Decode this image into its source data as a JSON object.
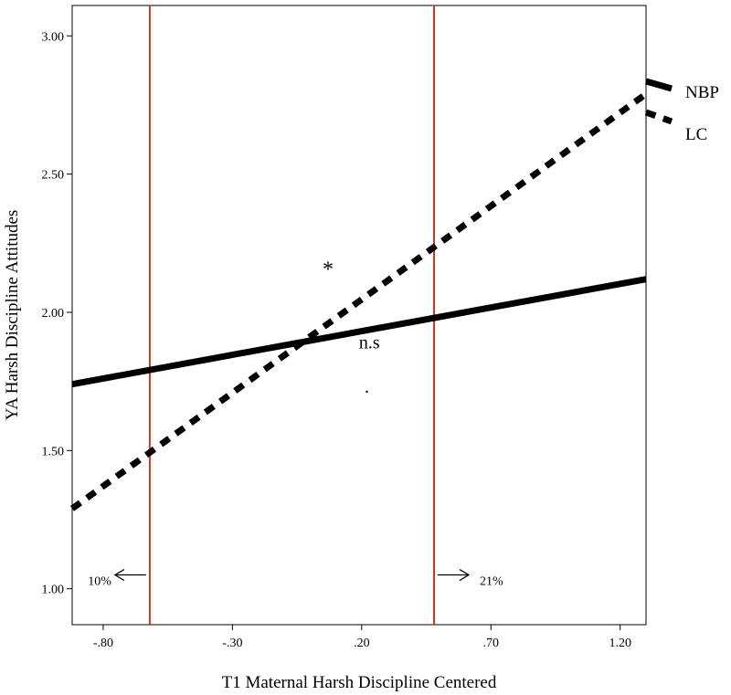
{
  "chart_data": {
    "type": "line",
    "title": "",
    "xlabel": "T1 Maternal Harsh Discipline Centered",
    "ylabel": "YA Harsh Discipline Attitudes",
    "xlim": [
      -0.92,
      1.3
    ],
    "ylim": [
      0.87,
      3.11
    ],
    "x_ticks": [
      -0.8,
      -0.3,
      0.2,
      0.7,
      1.2
    ],
    "x_tick_labels": [
      "-.80",
      "-.30",
      ".20",
      ".70",
      "1.20"
    ],
    "y_ticks": [
      1.0,
      1.5,
      2.0,
      2.5,
      3.0
    ],
    "y_tick_labels": [
      "1.00",
      "1.50",
      "2.00",
      "2.50",
      "3.00"
    ],
    "grid": false,
    "legend_placement": "right",
    "series": [
      {
        "name": "NBP",
        "style": "solid",
        "color": "#000000",
        "x": [
          -0.92,
          1.3
        ],
        "y": [
          1.74,
          2.12
        ]
      },
      {
        "name": "LC",
        "style": "dashed",
        "color": "#000000",
        "x": [
          -0.92,
          1.3
        ],
        "y": [
          1.29,
          2.79
        ]
      }
    ],
    "reference_lines": [
      {
        "x": -0.62,
        "color": "#c0392b",
        "label": "10%",
        "arrow": "left"
      },
      {
        "x": 0.48,
        "color": "#c0392b",
        "label": "21%",
        "arrow": "right"
      }
    ],
    "annotations": [
      {
        "text": "*",
        "x": 0.07,
        "y": 2.13
      },
      {
        "text": "n.s",
        "x": 0.23,
        "y": 1.87
      },
      {
        "text": ".",
        "x": 0.22,
        "y": 1.71
      }
    ]
  }
}
